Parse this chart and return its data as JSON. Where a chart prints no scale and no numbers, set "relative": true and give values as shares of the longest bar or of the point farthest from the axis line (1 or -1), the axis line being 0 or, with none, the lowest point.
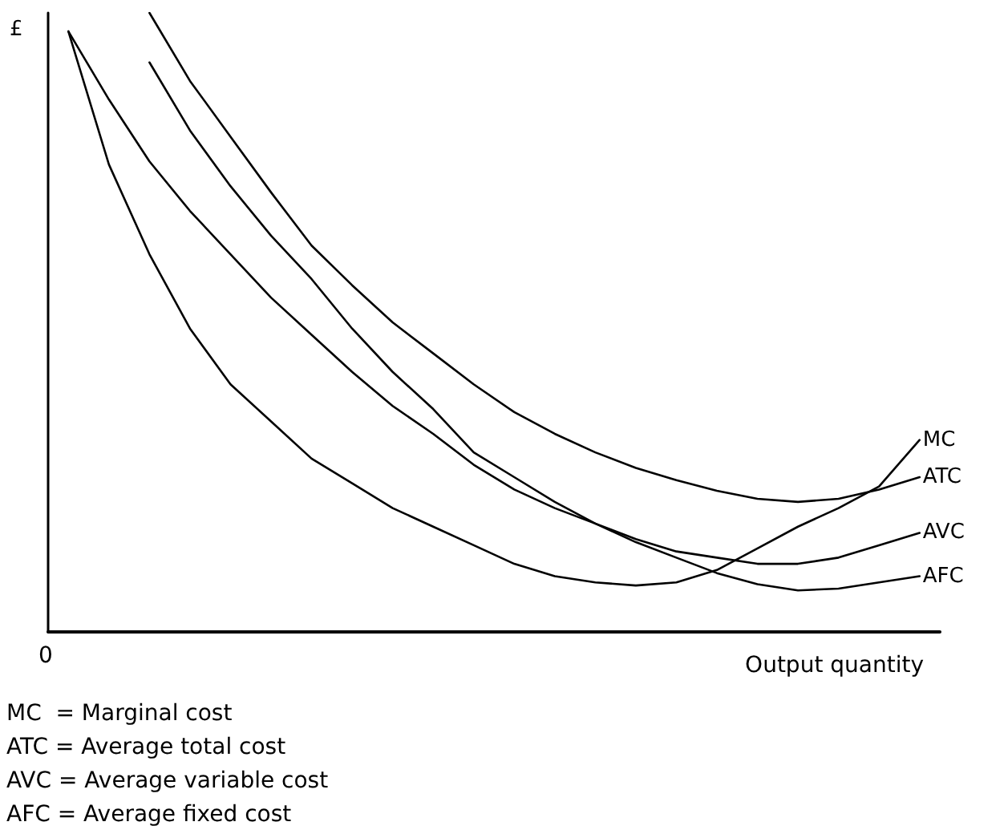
{
  "chart_data": {
    "type": "line",
    "relative": true,
    "ylabel": "£",
    "xlabel": "Output quantity",
    "grid": false,
    "legend": false,
    "marker": "none",
    "line_style": "solid",
    "categories": [
      null,
      null,
      null,
      null,
      null,
      null,
      null,
      null,
      null,
      null,
      null,
      null,
      null,
      null,
      null,
      null,
      null,
      null,
      null,
      null,
      null,
      null
    ],
    "series": [
      {
        "name": "MC",
        "color": "#000000",
        "values": [
          0.97,
          0.755,
          0.61,
          0.49,
          0.4,
          0.34,
          0.28,
          0.24,
          0.2,
          0.17,
          0.14,
          0.11,
          0.09,
          0.08,
          0.075,
          0.08,
          0.1,
          0.135,
          0.17,
          0.2,
          0.235,
          0.31
        ]
      },
      {
        "name": "ATC",
        "color": "#000000",
        "values": [
          null,
          null,
          1.0,
          0.89,
          0.8,
          0.71,
          0.624,
          0.56,
          0.5,
          0.45,
          0.4,
          0.355,
          0.32,
          0.29,
          0.265,
          0.245,
          0.228,
          0.215,
          0.21,
          0.215,
          0.23,
          0.25
        ]
      },
      {
        "name": "AVC",
        "color": "#000000",
        "values": [
          0.97,
          0.86,
          0.76,
          0.68,
          0.61,
          0.54,
          0.48,
          0.42,
          0.365,
          0.32,
          0.27,
          0.23,
          0.2,
          0.175,
          0.15,
          0.13,
          0.12,
          0.11,
          0.11,
          0.12,
          0.14,
          0.16
        ]
      },
      {
        "name": "AFC",
        "color": "#000000",
        "values": [
          null,
          null,
          0.92,
          0.81,
          0.72,
          0.64,
          0.57,
          0.49,
          0.42,
          0.36,
          0.29,
          0.25,
          0.21,
          0.175,
          0.145,
          0.12,
          0.095,
          0.077,
          0.067,
          0.07,
          0.08,
          0.09
        ]
      }
    ],
    "annotations": [
      "0",
      "MC  = Marginal cost",
      "ATC = Average total cost",
      "AVC = Average variable cost",
      "AFC = Average fixed cost"
    ]
  }
}
